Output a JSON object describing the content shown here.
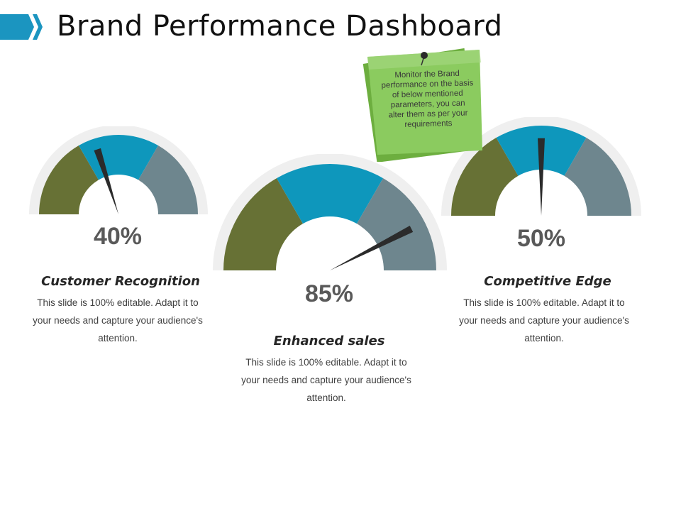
{
  "title": "Brand Performance Dashboard",
  "sticky_note": {
    "text": "Monitor the Brand performance on the basis of below mentioned parameters, you can alter them as per your requirements"
  },
  "colors": {
    "accent": "#1B95C0",
    "green": "#677135",
    "blue": "#0E97BC",
    "gray": "#6E868E",
    "track": "#EFEFEF",
    "needle": "#2B2B2B",
    "note": "#8BCB5F"
  },
  "gauges": [
    {
      "value": 40,
      "value_label": "40%",
      "heading": "Customer Recognition",
      "description": "This slide is 100% editable. Adapt it to your needs and capture your audience's attention."
    },
    {
      "value": 85,
      "value_label": "85%",
      "heading": "Enhanced sales",
      "description": "This slide is 100% editable. Adapt it to your needs and capture your audience's attention."
    },
    {
      "value": 50,
      "value_label": "50%",
      "heading": "Competitive Edge",
      "description": "This slide is 100% editable. Adapt it to your needs and capture your audience's attention."
    }
  ]
}
